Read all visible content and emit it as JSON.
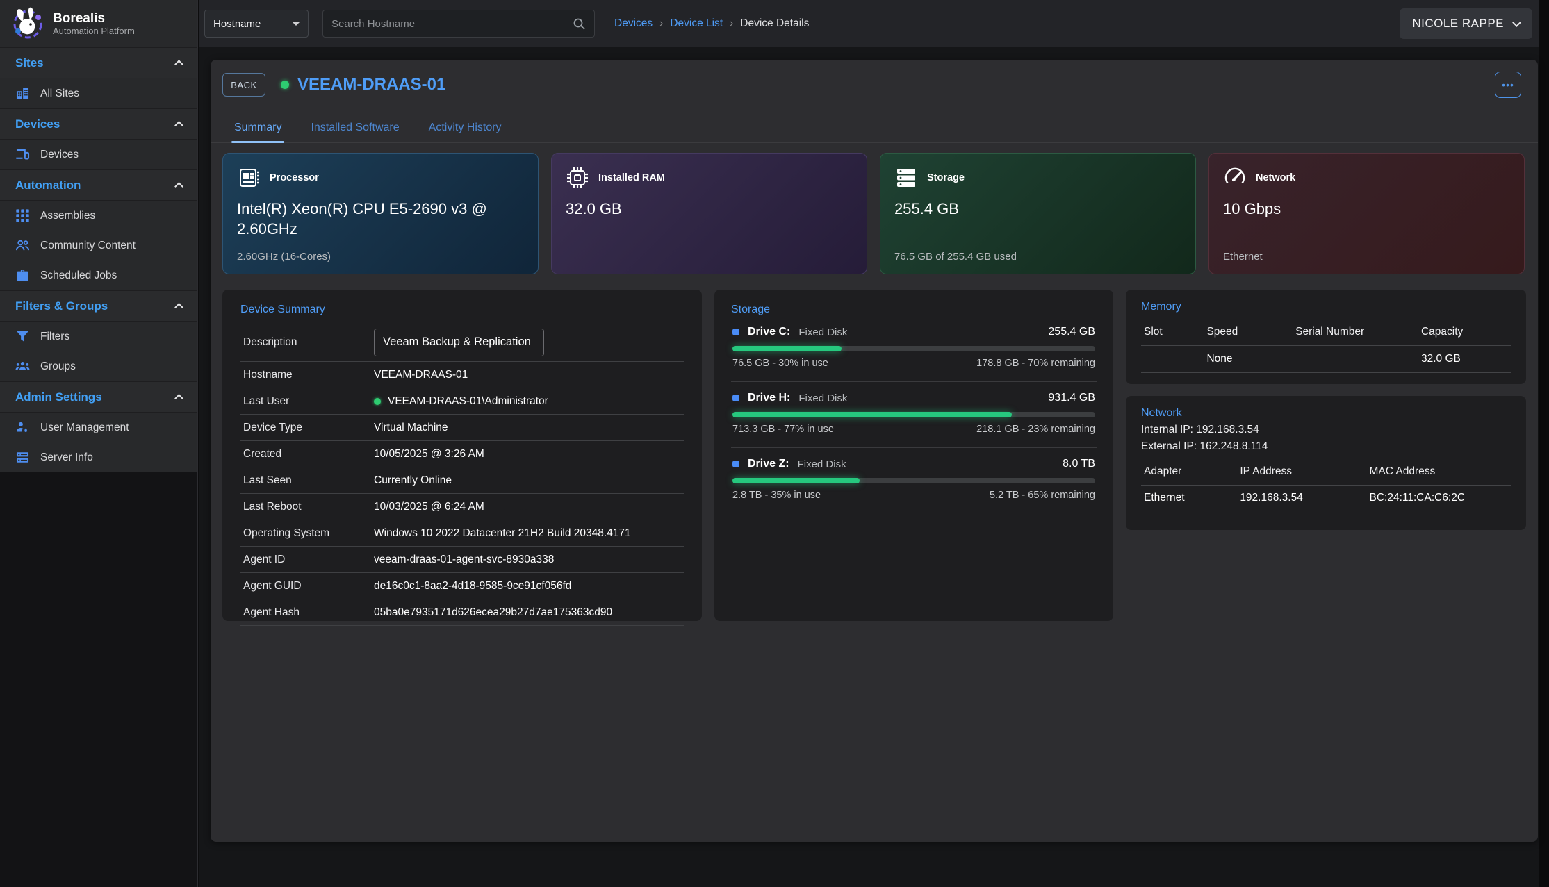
{
  "brand": {
    "name": "Borealis",
    "tagline": "Automation Platform",
    "logo": "rabbit-gear-logo"
  },
  "topbar": {
    "filter_selected": "Hostname",
    "search_placeholder": "Search Hostname",
    "search_icon": "search-icon",
    "breadcrumbs": [
      "Devices",
      "Device List",
      "Device Details"
    ],
    "breadcrumb_separator": "›",
    "user_label": "NICOLE RAPPE"
  },
  "sidebar": {
    "sections": [
      {
        "label": "Sites",
        "items": [
          {
            "label": "All Sites",
            "icon": "building-icon"
          }
        ]
      },
      {
        "label": "Devices",
        "items": [
          {
            "label": "Devices",
            "icon": "devices-icon"
          }
        ]
      },
      {
        "label": "Automation",
        "items": [
          {
            "label": "Assemblies",
            "icon": "grid-icon"
          },
          {
            "label": "Community Content",
            "icon": "people-icon"
          },
          {
            "label": "Scheduled Jobs",
            "icon": "briefcase-icon"
          }
        ]
      },
      {
        "label": "Filters & Groups",
        "items": [
          {
            "label": "Filters",
            "icon": "filter-icon"
          },
          {
            "label": "Groups",
            "icon": "groups-icon"
          }
        ]
      },
      {
        "label": "Admin Settings",
        "items": [
          {
            "label": "User Management",
            "icon": "user-gear-icon"
          },
          {
            "label": "Server Info",
            "icon": "server-icon"
          }
        ]
      }
    ]
  },
  "device_header": {
    "back_label": "BACK",
    "name": "VEEAM-DRAAS-01",
    "status": "online",
    "status_color": "#2ecc71",
    "menu_button_label": "•••",
    "tabs": [
      "Summary",
      "Installed Software",
      "Activity History"
    ],
    "active_tab": "Summary"
  },
  "stat_cards": [
    {
      "icon": "cpu-icon",
      "label": "Processor",
      "value": "Intel(R) Xeon(R) CPU E5-2690 v3 @ 2.60GHz",
      "sub": "2.60GHz (16-Cores)",
      "bg_from": "#1d3f58",
      "bg_to": "#102539",
      "border": "#2d5474"
    },
    {
      "icon": "ram-chip-icon",
      "label": "Installed RAM",
      "value": "32.0 GB",
      "sub": "",
      "bg_from": "#3a2f50",
      "bg_to": "#251c38",
      "border": "#453a60"
    },
    {
      "icon": "storage-stack-icon",
      "label": "Storage",
      "value": "255.4 GB",
      "sub": "76.5 GB of 255.4 GB used",
      "bg_from": "#1f4233",
      "bg_to": "#12281b",
      "border": "#2c5a42"
    },
    {
      "icon": "speedometer-icon",
      "label": "Network",
      "value": "10 Gbps",
      "sub": "Ethernet",
      "bg_from": "#38232b",
      "bg_to": "#361a1c",
      "border": "#54303a"
    }
  ],
  "summary_panel": {
    "title": "Device Summary",
    "rows": [
      {
        "label": "Description",
        "value": "Veeam Backup & Replication",
        "type": "input"
      },
      {
        "label": "Hostname",
        "value": "VEEAM-DRAAS-01"
      },
      {
        "label": "Last User",
        "value": "VEEAM-DRAAS-01\\Administrator",
        "online_dot": true
      },
      {
        "label": "Device Type",
        "value": "Virtual Machine"
      },
      {
        "label": "Created",
        "value": "10/05/2025 @ 3:26 AM"
      },
      {
        "label": "Last Seen",
        "value": "Currently Online"
      },
      {
        "label": "Last Reboot",
        "value": "10/03/2025 @ 6:24 AM"
      },
      {
        "label": "Operating System",
        "value": "Windows 10 2022 Datacenter 21H2 Build 20348.4171"
      },
      {
        "label": "Agent ID",
        "value": "veeam-draas-01-agent-svc-8930a338"
      },
      {
        "label": "Agent GUID",
        "value": "de16c0c1-8aa2-4d18-9585-9ce91cf056fd"
      },
      {
        "label": "Agent Hash",
        "value": "05ba0e7935171d626ecea29b27d7ae175363cd90"
      }
    ]
  },
  "storage_panel": {
    "title": "Storage",
    "drives": [
      {
        "name": "Drive C:",
        "type": "Fixed Disk",
        "size": "255.4 GB",
        "used_pct": 30,
        "used_text": "76.5 GB - 30% in use",
        "remaining_text": "178.8 GB - 70% remaining"
      },
      {
        "name": "Drive H:",
        "type": "Fixed Disk",
        "size": "931.4 GB",
        "used_pct": 77,
        "used_text": "713.3 GB - 77% in use",
        "remaining_text": "218.1 GB - 23% remaining"
      },
      {
        "name": "Drive Z:",
        "type": "Fixed Disk",
        "size": "8.0 TB",
        "used_pct": 35,
        "used_text": "2.8 TB - 35% in use",
        "remaining_text": "5.2 TB - 65% remaining"
      }
    ],
    "bar_color": "#26c87e"
  },
  "memory_panel": {
    "title": "Memory",
    "headers": [
      "Slot",
      "Speed",
      "Serial Number",
      "Capacity"
    ],
    "rows": [
      {
        "slot": "",
        "speed": "None",
        "serial": "",
        "capacity": "32.0 GB"
      }
    ]
  },
  "network_panel": {
    "title": "Network",
    "internal_ip": "Internal IP: 192.168.3.54",
    "external_ip": "External IP: 162.248.8.114",
    "headers": [
      "Adapter",
      "IP Address",
      "MAC Address"
    ],
    "rows": [
      {
        "adapter": "Ethernet",
        "ip": "192.168.3.54",
        "mac": "BC:24:11:CA:C6:2C"
      }
    ]
  },
  "colors": {
    "accent_blue": "#4e9bf5",
    "sidebar_header_blue": "#42a0f5",
    "online_green": "#2ecc71",
    "progress_green": "#26c87e",
    "card_bg": "#2d2d30",
    "panel_bg": "#1e1e20"
  }
}
